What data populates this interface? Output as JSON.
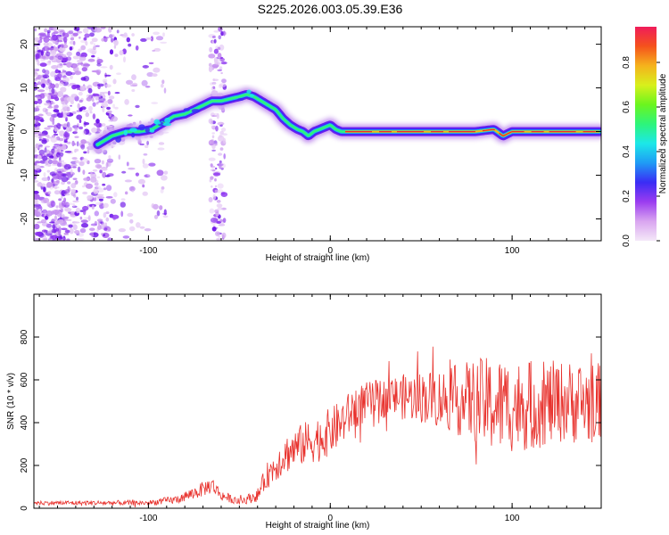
{
  "title": "S225.2026.003.05.39.E36",
  "chart_data": [
    {
      "type": "heatmap",
      "name": "spectrogram",
      "xlabel": "Height of straight line (km)",
      "ylabel": "Frequency (Hz)",
      "xlim": [
        -163,
        149
      ],
      "ylim": [
        -25,
        24
      ],
      "xticks": [
        -100,
        0,
        100
      ],
      "yticks": [
        20,
        10,
        0,
        -10,
        -20
      ],
      "ridge": {
        "x": [
          -128,
          -120,
          -112,
          -105,
          -98,
          -92,
          -86,
          -80,
          -75,
          -70,
          -65,
          -60,
          -55,
          -50,
          -46,
          -42,
          -38,
          -34,
          -30,
          -26,
          -22,
          -18,
          -15,
          -12,
          -9,
          -6,
          -3,
          0,
          3,
          6,
          10,
          20,
          40,
          60,
          80,
          90,
          95,
          100,
          120,
          140,
          148
        ],
        "freq": [
          -3,
          -1,
          0,
          0,
          0.5,
          2,
          3.5,
          4,
          5,
          6,
          7,
          7,
          7.5,
          8,
          8.5,
          8,
          7,
          6,
          5,
          3,
          1.5,
          0.5,
          0,
          -1,
          0,
          0.5,
          1,
          1.5,
          0.5,
          0,
          0,
          0,
          0,
          0,
          0,
          0.5,
          -1,
          0,
          0,
          0,
          0
        ]
      },
      "colorbar": {
        "label": "Normalized spectral amplitude",
        "ticks": [
          "0.0",
          "0.2",
          "0.4",
          "0.6",
          "0.8"
        ],
        "colors": [
          "#f4e8f8",
          "#d9a5f0",
          "#9b3cf0",
          "#3a2cf5",
          "#1f9bf5",
          "#1ce8e8",
          "#2df57a",
          "#6bf51e",
          "#d8f01c",
          "#f5b21c",
          "#f5521c",
          "#f01c5a"
        ]
      }
    },
    {
      "type": "line",
      "name": "snr",
      "xlabel": "Height of straight line (km)",
      "ylabel": "SNR (10 * v/v)",
      "xlim": [
        -163,
        149
      ],
      "ylim": [
        0,
        1000
      ],
      "xticks": [
        -100,
        0,
        100
      ],
      "yticks": [
        0,
        200,
        400,
        600,
        800
      ],
      "color": "#e8322d",
      "trend": {
        "x": [
          -163,
          -120,
          -100,
          -85,
          -75,
          -65,
          -60,
          -50,
          -40,
          -35,
          -25,
          -15,
          -5,
          5,
          15,
          25,
          35,
          50,
          65,
          80,
          90,
          100,
          110,
          120,
          130,
          140,
          149
        ],
        "mean": [
          25,
          25,
          25,
          40,
          70,
          110,
          60,
          30,
          60,
          150,
          250,
          300,
          330,
          390,
          480,
          510,
          520,
          520,
          510,
          500,
          480,
          480,
          480,
          490,
          500,
          490,
          500
        ],
        "spread": [
          10,
          12,
          12,
          20,
          30,
          40,
          25,
          15,
          30,
          60,
          90,
          100,
          110,
          110,
          100,
          90,
          100,
          120,
          150,
          200,
          230,
          220,
          210,
          200,
          190,
          200,
          180
        ]
      }
    }
  ]
}
